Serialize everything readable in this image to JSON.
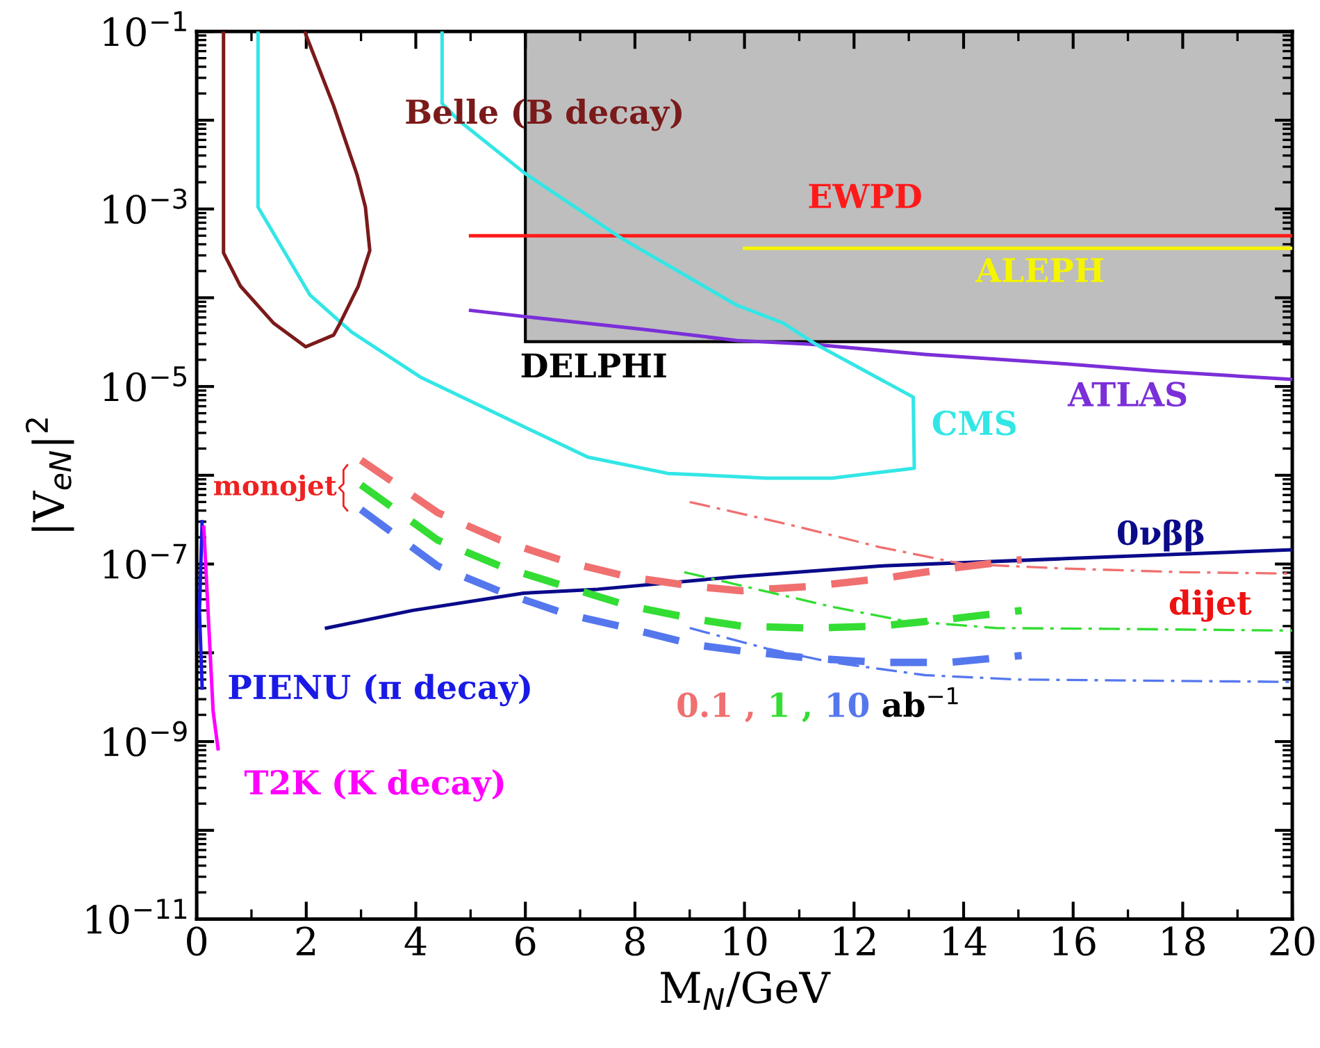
{
  "chart_data": {
    "type": "line",
    "xlabel": "M$_{N}$/GeV",
    "ylabel": "|V$_{eN}$|$^{2}$",
    "log": "y",
    "xlim": [
      0,
      20
    ],
    "xticks": [
      0,
      2,
      4,
      6,
      8,
      10,
      12,
      14,
      16,
      18,
      20
    ],
    "ylim": [
      1e-11,
      0.1
    ],
    "yticks": [
      {
        "value": 1e-11,
        "label": "10$^{−11}$"
      },
      {
        "value": 1e-10,
        "label": null
      },
      {
        "value": 1e-09,
        "label": "10$^{−9}$"
      },
      {
        "value": 1e-08,
        "label": null
      },
      {
        "value": 1e-07,
        "label": "10$^{−7}$"
      },
      {
        "value": 1e-06,
        "label": null
      },
      {
        "value": 1e-05,
        "label": "10$^{−5}$"
      },
      {
        "value": 0.0001,
        "label": null
      },
      {
        "value": 0.001,
        "label": "10$^{−3}$"
      },
      {
        "value": 0.01,
        "label": null
      },
      {
        "value": 0.1,
        "label": "10$^{−1}$"
      }
    ],
    "grid": false,
    "annotations": [
      "monojet",
      "dijet",
      "ab$^{−1}$"
    ],
    "series": [
      {
        "name": "DELPHI",
        "type": "area",
        "color": "#bebebe",
        "x": [
          6,
          6,
          20,
          20
        ],
        "values": [
          0.1,
          3.2e-05,
          3.2e-05,
          0.1
        ]
      },
      {
        "name": "EWPD",
        "color": "#ff1a1a",
        "line_style": "solid",
        "x": [
          5,
          20
        ],
        "values": [
          0.0005,
          0.0005
        ]
      },
      {
        "name": "ALEPH",
        "color": "#f5f500",
        "line_style": "solid",
        "x": [
          10,
          20
        ],
        "values": [
          0.00036,
          0.00036
        ]
      },
      {
        "name": "ATLAS",
        "color": "#7b2fd8",
        "line_style": "solid",
        "x": [
          5,
          6.13,
          8.16,
          9.86,
          11.2,
          13.3,
          15.85,
          17.5,
          20
        ],
        "values": [
          7.2e-05,
          6e-05,
          4.4e-05,
          3.3e-05,
          3e-05,
          2.3e-05,
          1.8e-05,
          1.5e-05,
          1.2e-05
        ]
      },
      {
        "name": "CMS",
        "color": "#33e6e6",
        "line_style": "solid",
        "x": [
          1.12,
          1.12,
          2.07,
          2.83,
          4.1,
          5.55,
          7.14,
          8.6,
          10.4,
          11.6,
          13.1,
          13.08,
          11.3,
          10.7,
          9.85,
          7.75,
          6.0,
          4.78,
          4.48,
          4.48
        ],
        "values": [
          0.1,
          0.00105,
          0.000107,
          4.1e-05,
          1.26e-05,
          4.7e-06,
          1.6e-06,
          1.05e-06,
          9.3e-07,
          9.3e-07,
          1.2e-06,
          7.6e-06,
          3e-05,
          5.2e-05,
          8.3e-05,
          0.00047,
          0.0025,
          0.01,
          0.0155,
          0.1
        ]
      },
      {
        "name": "Belle (B decay)",
        "color": "#7b1a1a",
        "line_style": "solid",
        "x": [
          0.49,
          0.49,
          0.8,
          1.4,
          1.99,
          2.5,
          2.62,
          2.95,
          3.16,
          3.08,
          2.93,
          2.5,
          1.99,
          1.98
        ],
        "values": [
          0.1,
          0.00032,
          0.000135,
          5.2e-05,
          2.8e-05,
          3.8e-05,
          5.2e-05,
          0.000135,
          0.00034,
          0.00105,
          0.0024,
          0.0145,
          0.093,
          0.1
        ]
      },
      {
        "name": "0νββ",
        "color": "#0a0a8a",
        "line_style": "solid",
        "x": [
          2.37,
          3.94,
          5.97,
          7.32,
          9.86,
          12.47,
          15.85,
          20
        ],
        "values": [
          1.9e-08,
          3e-08,
          4.7e-08,
          5.2e-08,
          7.2e-08,
          9.5e-08,
          1.15e-07,
          1.45e-07
        ]
      },
      {
        "name": "PIENU (π decay)",
        "color": "#1a1ae6",
        "line_style": "solid",
        "x": [
          0.1,
          0.05,
          0.1
        ],
        "values": [
          3e-07,
          3e-08,
          4e-09
        ]
      },
      {
        "name": "T2K (K decay)",
        "color": "#ff00ff",
        "line_style": "solid",
        "x": [
          0.13,
          0.3,
          0.39
        ],
        "values": [
          2.6e-07,
          2.2e-09,
          8.3e-10
        ]
      },
      {
        "name": "0.1 ,",
        "color": "#f07070",
        "line_style": "dashed",
        "x": [
          3.0,
          4.4,
          5.54,
          6.73,
          7.87,
          9.1,
          9.94,
          11.2,
          12.47,
          13.74,
          15.06
        ],
        "values": [
          1.48e-06,
          3.8e-07,
          1.86e-07,
          1.07e-07,
          7.2e-08,
          5.6e-08,
          5e-08,
          5.6e-08,
          6.8e-08,
          8.9e-08,
          1.12e-07
        ]
      },
      {
        "name": "1 ,",
        "color": "#33dd33",
        "line_style": "dashed",
        "x": [
          3.0,
          4.4,
          5.54,
          6.73,
          7.87,
          9.1,
          9.94,
          11.2,
          12.47,
          13.74,
          15.06
        ],
        "values": [
          7.8e-07,
          1.86e-07,
          9.5e-08,
          5.6e-08,
          3.4e-08,
          2.4e-08,
          2e-08,
          1.9e-08,
          2e-08,
          2.4e-08,
          3e-08
        ]
      },
      {
        "name": "10",
        "color": "#5577ee",
        "line_style": "dashed",
        "x": [
          3.0,
          4.4,
          5.54,
          6.73,
          7.87,
          9.1,
          9.94,
          11.2,
          12.47,
          13.74,
          15.06
        ],
        "values": [
          4.1e-07,
          9.5e-08,
          4.9e-08,
          2.75e-08,
          1.9e-08,
          1.23e-08,
          1.05e-08,
          8.7e-09,
          7.8e-09,
          7.8e-09,
          9.3e-09
        ]
      },
      {
        "color": "#f07070",
        "line_style": "dashdot",
        "x": [
          9.0,
          10.8,
          12.47,
          14.0,
          15.85,
          17.98,
          20
        ],
        "values": [
          5e-07,
          2.8e-07,
          1.55e-07,
          1e-07,
          8.9e-08,
          8.1e-08,
          7.8e-08
        ]
      },
      {
        "color": "#33dd33",
        "line_style": "dashdot",
        "x": [
          8.9,
          10.4,
          11.6,
          12.9,
          14.6,
          16.7,
          20
        ],
        "values": [
          8.1e-08,
          4.9e-08,
          3.3e-08,
          2.3e-08,
          1.9e-08,
          1.86e-08,
          1.78e-08
        ]
      },
      {
        "color": "#5577ee",
        "line_style": "dashdot",
        "x": [
          9.0,
          10.4,
          11.6,
          13.3,
          15.0,
          20
        ],
        "values": [
          1.9e-08,
          1.12e-08,
          7.8e-09,
          5.6e-09,
          5e-09,
          4.7e-09
        ]
      }
    ]
  }
}
